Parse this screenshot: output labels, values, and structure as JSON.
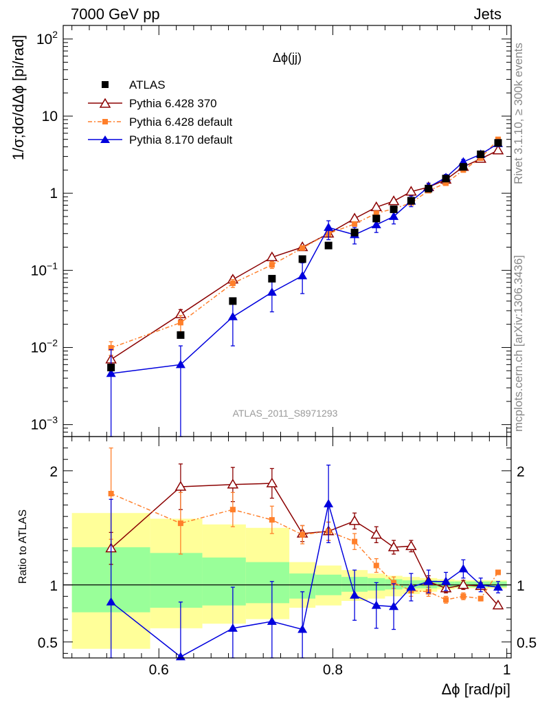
{
  "header": {
    "left": "7000 GeV pp",
    "right": "Jets"
  },
  "side_labels": {
    "rivet": "Rivet 3.1.10, ≥ 300k events",
    "mcplots": "mcplots.cern.ch [arXiv:1306.3436]"
  },
  "chart_data": [
    {
      "type": "scatter",
      "title": "Δϕ(jj)",
      "analysis_tag": "ATLAS_2011_S8971293",
      "ylabel": "1/σ;dσ/dΔϕ [pi/rad]",
      "xlim": [
        0.49,
        1.005
      ],
      "ylim": [
        0.0007,
        150
      ],
      "yscale": "log",
      "ytick_labels": [
        "10^-3",
        "10^-2",
        "10^-1",
        "1",
        "10",
        "10^2"
      ],
      "legend_position": "upper-left",
      "x": [
        0.545,
        0.625,
        0.685,
        0.73,
        0.765,
        0.795,
        0.825,
        0.85,
        0.87,
        0.89,
        0.91,
        0.93,
        0.95,
        0.97,
        0.99
      ],
      "series": [
        {
          "name": "ATLAS",
          "color": "#000000",
          "marker": "square",
          "values": [
            0.0055,
            0.0145,
            0.04,
            0.078,
            0.14,
            0.21,
            0.31,
            0.47,
            0.62,
            0.8,
            1.15,
            1.55,
            2.2,
            3.2,
            4.5
          ]
        },
        {
          "name": "Pythia 6.428 370",
          "color": "#8b0000",
          "marker": "open-triangle",
          "values": [
            0.007,
            0.027,
            0.076,
            0.148,
            0.2,
            0.3,
            0.47,
            0.66,
            0.79,
            1.05,
            1.2,
            1.5,
            2.2,
            2.8,
            3.6
          ],
          "yerr": [
            0.0009,
            0.004,
            0.007,
            0.012,
            0.01,
            0.02,
            0.03,
            0.04,
            0.04,
            0.05,
            0.05,
            0.05,
            0.05,
            0.05,
            0.05
          ]
        },
        {
          "name": "Pythia 6.428 default",
          "color": "#ff7f2a",
          "marker": "square",
          "values": [
            0.0099,
            0.021,
            0.068,
            0.118,
            0.195,
            0.3,
            0.4,
            0.55,
            0.63,
            0.75,
            1.08,
            1.35,
            2.0,
            2.85,
            5.0
          ],
          "yerr": [
            0.002,
            0.005,
            0.008,
            0.012,
            0.012,
            0.02,
            0.025,
            0.03,
            0.03,
            0.04,
            0.04,
            0.04,
            0.04,
            0.05,
            0.05
          ]
        },
        {
          "name": "Pythia 8.170 default",
          "color": "#0000dd",
          "marker": "filled-triangle",
          "values": [
            0.0046,
            0.006,
            0.025,
            0.052,
            0.085,
            0.36,
            0.29,
            0.39,
            0.5,
            0.79,
            1.2,
            1.6,
            2.55,
            3.2,
            4.4
          ],
          "yerr_low": [
            0.0045,
            0.0059,
            0.0145,
            0.023,
            0.035,
            0.11,
            0.07,
            0.08,
            0.1,
            0.12,
            0.15,
            0.15,
            0.2,
            0.2,
            0.3
          ],
          "yerr_high": [
            0.0048,
            0.0045,
            0.017,
            0.025,
            0.04,
            0.08,
            0.07,
            0.09,
            0.11,
            0.13,
            0.15,
            0.15,
            0.2,
            0.2,
            0.3
          ]
        }
      ]
    },
    {
      "type": "scatter",
      "ylabel": "Ratio to ATLAS",
      "xlabel": "Δϕ [rad/pi]",
      "xlim": [
        0.49,
        1.005
      ],
      "ylim": [
        0.36,
        2.3
      ],
      "xtick_labels": [
        "0.6",
        "0.8",
        "1"
      ],
      "ytick_labels": [
        "0.5",
        "1",
        "2"
      ],
      "reference_line": 1,
      "bands": {
        "x_edges": [
          0.5,
          0.59,
          0.65,
          0.7,
          0.75,
          0.78,
          0.81,
          0.84,
          0.86,
          0.88,
          0.9,
          0.92,
          0.94,
          0.96,
          0.98,
          1.0
        ],
        "yellow_low": [
          0.44,
          0.62,
          0.66,
          0.7,
          0.8,
          0.82,
          0.86,
          0.88,
          0.9,
          0.92,
          0.94,
          0.96,
          0.97,
          0.97,
          0.97
        ],
        "yellow_high": [
          1.63,
          1.58,
          1.53,
          1.5,
          1.2,
          1.17,
          1.13,
          1.1,
          1.08,
          1.07,
          1.06,
          1.05,
          1.04,
          1.04,
          1.04
        ],
        "green_low": [
          0.76,
          0.8,
          0.82,
          0.84,
          0.88,
          0.91,
          0.94,
          0.95,
          0.96,
          0.97,
          0.97,
          0.98,
          0.98,
          0.98,
          0.98
        ],
        "green_high": [
          1.33,
          1.28,
          1.24,
          1.2,
          1.1,
          1.09,
          1.07,
          1.06,
          1.05,
          1.04,
          1.04,
          1.03,
          1.03,
          1.03,
          1.03
        ]
      },
      "x": [
        0.545,
        0.625,
        0.685,
        0.73,
        0.765,
        0.795,
        0.825,
        0.85,
        0.87,
        0.89,
        0.91,
        0.93,
        0.95,
        0.97,
        0.99
      ],
      "series": [
        {
          "name": "Pythia 6.428 370",
          "color": "#8b0000",
          "marker": "open-triangle",
          "values": [
            1.32,
            1.86,
            1.88,
            1.89,
            1.45,
            1.47,
            1.56,
            1.44,
            1.33,
            1.34,
            1.03,
            0.97,
            1.0,
            0.99,
            0.82
          ],
          "yerr": [
            0.14,
            0.2,
            0.15,
            0.13,
            0.07,
            0.08,
            0.07,
            0.07,
            0.06,
            0.05,
            0.05,
            0.04,
            0.04,
            0.03,
            0.02
          ]
        },
        {
          "name": "Pythia 6.428 default",
          "color": "#ff7f2a",
          "marker": "square",
          "values": [
            1.8,
            1.54,
            1.66,
            1.57,
            1.44,
            1.47,
            1.38,
            1.17,
            1.02,
            0.95,
            0.94,
            0.87,
            0.9,
            0.88,
            1.11
          ],
          "yerr": [
            0.4,
            0.27,
            0.15,
            0.12,
            0.08,
            0.08,
            0.07,
            0.06,
            0.05,
            0.05,
            0.04,
            0.03,
            0.03,
            0.02,
            0.02
          ]
        },
        {
          "name": "Pythia 8.170 default",
          "color": "#0000dd",
          "marker": "filled-triangle",
          "values": [
            0.85,
            0.37,
            0.62,
            0.68,
            0.61,
            1.71,
            0.91,
            0.82,
            0.81,
            0.98,
            1.03,
            1.03,
            1.14,
            1.0,
            0.98
          ],
          "yerr_low": [
            0.85,
            0.37,
            0.36,
            0.35,
            0.33,
            0.34,
            0.22,
            0.2,
            0.2,
            0.12,
            0.1,
            0.08,
            0.08,
            0.06,
            0.05
          ],
          "yerr_high": [
            0.9,
            0.48,
            0.36,
            0.35,
            0.33,
            0.34,
            0.22,
            0.2,
            0.2,
            0.12,
            0.1,
            0.08,
            0.08,
            0.06,
            0.05
          ]
        }
      ]
    }
  ]
}
